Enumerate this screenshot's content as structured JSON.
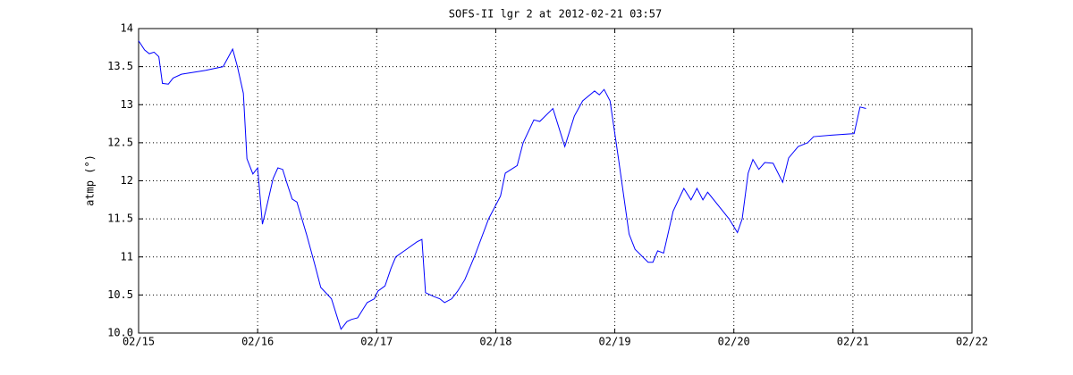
{
  "chart_data": {
    "type": "line",
    "title": "SOFS-II lgr 2 at 2012-02-21 03:57",
    "y_label": "atmp (°)",
    "x": [
      15.0,
      15.05,
      15.09,
      15.13,
      15.17,
      15.2,
      15.25,
      15.29,
      15.36,
      15.56,
      15.71,
      15.79,
      15.83,
      15.88,
      15.91,
      15.96,
      16.0,
      16.04,
      16.07,
      16.13,
      16.17,
      16.21,
      16.25,
      16.29,
      16.33,
      16.41,
      16.48,
      16.53,
      16.59,
      16.62,
      16.66,
      16.7,
      16.75,
      16.79,
      16.84,
      16.88,
      16.92,
      16.98,
      17.01,
      17.07,
      17.12,
      17.16,
      17.25,
      17.34,
      17.38,
      17.41,
      17.48,
      17.53,
      17.57,
      17.63,
      17.68,
      17.74,
      17.82,
      17.94,
      18.04,
      18.08,
      18.18,
      18.23,
      18.32,
      18.37,
      18.48,
      18.58,
      18.66,
      18.73,
      18.83,
      18.87,
      18.91,
      18.96,
      19.03,
      19.12,
      19.17,
      19.28,
      19.32,
      19.36,
      19.41,
      19.49,
      19.58,
      19.64,
      19.69,
      19.74,
      19.78,
      19.96,
      20.03,
      20.07,
      20.12,
      20.16,
      20.21,
      20.26,
      20.33,
      20.41,
      20.46,
      20.54,
      20.62,
      20.67,
      20.82,
      21.01,
      21.06,
      21.11
    ],
    "series": [
      {
        "color": "#0000ff",
        "values": [
          13.84,
          13.72,
          13.67,
          13.69,
          13.63,
          13.28,
          13.27,
          13.35,
          13.4,
          13.45,
          13.5,
          13.73,
          13.5,
          13.15,
          12.29,
          12.09,
          12.17,
          11.43,
          11.62,
          12.03,
          12.17,
          12.15,
          11.95,
          11.76,
          11.72,
          11.3,
          10.9,
          10.6,
          10.5,
          10.45,
          10.25,
          10.05,
          10.15,
          10.18,
          10.2,
          10.3,
          10.4,
          10.45,
          10.55,
          10.62,
          10.85,
          11.0,
          11.1,
          11.2,
          11.23,
          10.53,
          10.48,
          10.45,
          10.4,
          10.45,
          10.55,
          10.7,
          11.0,
          11.5,
          11.8,
          12.1,
          12.2,
          12.5,
          12.8,
          12.78,
          12.95,
          12.45,
          12.85,
          13.05,
          13.18,
          13.13,
          13.2,
          13.05,
          12.3,
          11.3,
          11.1,
          10.93,
          10.93,
          11.08,
          11.05,
          11.6,
          11.9,
          11.75,
          11.9,
          11.75,
          11.85,
          11.5,
          11.32,
          11.5,
          12.1,
          12.28,
          12.15,
          12.24,
          12.23,
          11.98,
          12.3,
          12.45,
          12.5,
          12.58,
          12.6,
          12.62,
          12.97,
          12.95
        ]
      }
    ],
    "xlim": [
      15,
      22
    ],
    "xticks": [
      {
        "value": 15,
        "label": "02/15"
      },
      {
        "value": 16,
        "label": "02/16"
      },
      {
        "value": 17,
        "label": "02/17"
      },
      {
        "value": 18,
        "label": "02/18"
      },
      {
        "value": 19,
        "label": "02/19"
      },
      {
        "value": 20,
        "label": "02/20"
      },
      {
        "value": 21,
        "label": "02/21"
      },
      {
        "value": 22,
        "label": "02/22"
      }
    ],
    "ylim": [
      10,
      14
    ],
    "yticks": [
      {
        "value": 10,
        "label": "10.0"
      },
      10.5,
      11,
      11.5,
      12,
      12.5,
      13,
      13.5,
      14
    ],
    "grid": true
  }
}
